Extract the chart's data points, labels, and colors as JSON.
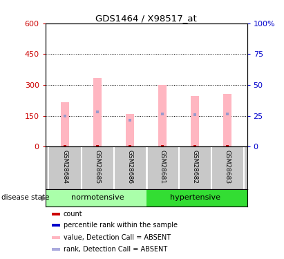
{
  "title": "GDS1464 / X98517_at",
  "samples": [
    "GSM28684",
    "GSM28685",
    "GSM28686",
    "GSM28681",
    "GSM28682",
    "GSM28683"
  ],
  "groups": [
    "normotensive",
    "normotensive",
    "normotensive",
    "hypertensive",
    "hypertensive",
    "hypertensive"
  ],
  "normotensive_color": "#AAFFAA",
  "hypertensive_color": "#33DD33",
  "pink_bar_heights": [
    215,
    335,
    160,
    300,
    245,
    258
  ],
  "blue_dot_values": [
    150,
    168,
    128,
    158,
    155,
    158
  ],
  "red_dot_values": [
    2,
    2,
    2,
    2,
    2,
    2
  ],
  "ylim_left": [
    0,
    600
  ],
  "ylim_right": [
    0,
    100
  ],
  "yticks_left": [
    0,
    150,
    300,
    450,
    600
  ],
  "yticks_right": [
    0,
    25,
    50,
    75,
    100
  ],
  "left_tick_labels": [
    "0",
    "150",
    "300",
    "450",
    "600"
  ],
  "right_tick_labels": [
    "0",
    "25",
    "50",
    "75",
    "100%"
  ],
  "left_color": "#CC0000",
  "right_color": "#0000CC",
  "pink_bar_color": "#FFB6C1",
  "blue_dot_color": "#9999CC",
  "red_dot_color": "#CC0000",
  "bar_width": 0.25,
  "background_color": "#FFFFFF",
  "plot_bg": "#FFFFFF",
  "grid_color": "black",
  "legend_items": [
    {
      "label": "count",
      "color": "#CC0000"
    },
    {
      "label": "percentile rank within the sample",
      "color": "#0000CC"
    },
    {
      "label": "value, Detection Call = ABSENT",
      "color": "#FFB6C1"
    },
    {
      "label": "rank, Detection Call = ABSENT",
      "color": "#AAAADD"
    }
  ],
  "disease_state_label": "disease state",
  "normotensive_label": "normotensive",
  "hypertensive_label": "hypertensive"
}
